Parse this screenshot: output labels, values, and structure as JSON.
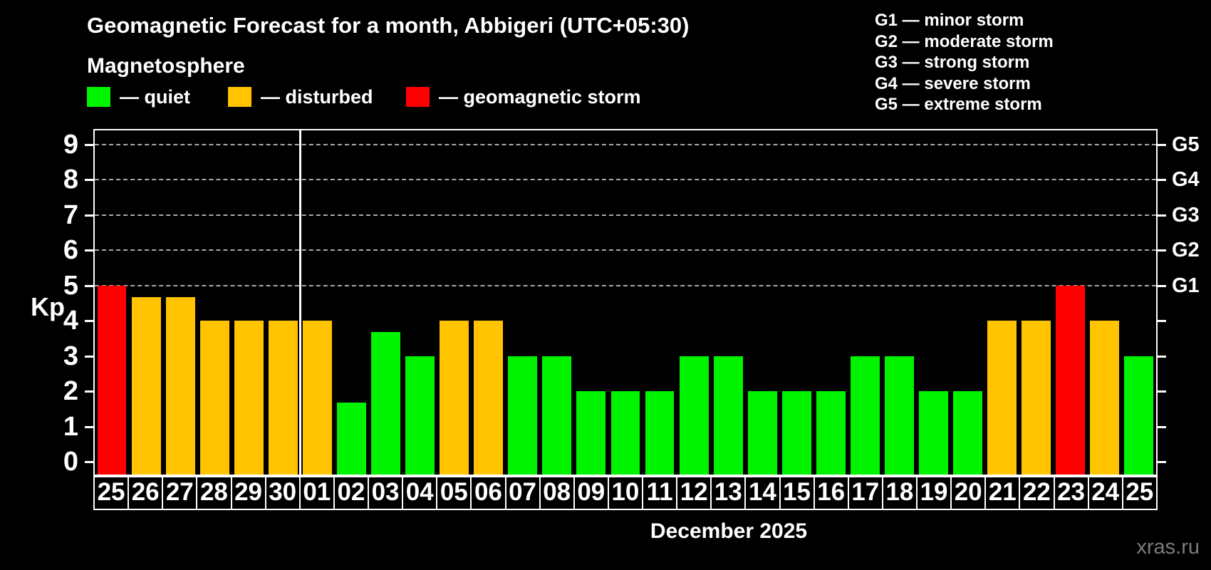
{
  "header": {
    "title": "Geomagnetic Forecast for a month, Abbigeri (UTC+05:30)",
    "subtitle": "Magnetosphere"
  },
  "legend": {
    "items": [
      {
        "key": "quiet",
        "label": "— quiet",
        "color": "#00f400"
      },
      {
        "key": "disturbed",
        "label": "— disturbed",
        "color": "#ffc300"
      },
      {
        "key": "storm",
        "label": "— geomagnetic storm",
        "color": "#ff0000"
      }
    ]
  },
  "g_scale_legend": [
    "G1 — minor storm",
    "G2 — moderate storm",
    "G3 — strong storm",
    "G4 — severe storm",
    "G5 — extreme storm"
  ],
  "chart_data": {
    "type": "bar",
    "title": "Geomagnetic Forecast for a month, Abbigeri (UTC+05:30)",
    "ylabel": "Kp",
    "xlabel": "December 2025",
    "ylim": [
      0,
      9
    ],
    "yticks": [
      0,
      1,
      2,
      3,
      4,
      5,
      6,
      7,
      8,
      9
    ],
    "grid": "dashed horizontal lines at Kp 5-9 only",
    "right_axis_labels": [
      {
        "label": "G1",
        "kp": 5
      },
      {
        "label": "G2",
        "kp": 6
      },
      {
        "label": "G3",
        "kp": 7
      },
      {
        "label": "G4",
        "kp": 8
      },
      {
        "label": "G5",
        "kp": 9
      }
    ],
    "month_separator_after_index": 5,
    "categories": [
      "25",
      "26",
      "27",
      "28",
      "29",
      "30",
      "01",
      "02",
      "03",
      "04",
      "05",
      "06",
      "07",
      "08",
      "09",
      "10",
      "11",
      "12",
      "13",
      "14",
      "15",
      "16",
      "17",
      "18",
      "19",
      "20",
      "21",
      "22",
      "23",
      "24",
      "25"
    ],
    "series": [
      {
        "name": "Kp forecast",
        "values": [
          5,
          4.67,
          4.67,
          4,
          4,
          4,
          4,
          1.67,
          3.67,
          3,
          4,
          4,
          3,
          3,
          2,
          2,
          2,
          3,
          3,
          2,
          2,
          2,
          3,
          3,
          2,
          2,
          4,
          4,
          5,
          4,
          3
        ]
      }
    ],
    "statuses": [
      "storm",
      "disturbed",
      "disturbed",
      "disturbed",
      "disturbed",
      "disturbed",
      "disturbed",
      "quiet",
      "quiet",
      "quiet",
      "disturbed",
      "disturbed",
      "quiet",
      "quiet",
      "quiet",
      "quiet",
      "quiet",
      "quiet",
      "quiet",
      "quiet",
      "quiet",
      "quiet",
      "quiet",
      "quiet",
      "quiet",
      "quiet",
      "disturbed",
      "disturbed",
      "storm",
      "disturbed",
      "quiet"
    ],
    "status_colors": {
      "quiet": "#00f400",
      "disturbed": "#ffc300",
      "storm": "#ff0000"
    }
  },
  "footer": {
    "month_label": "December 2025",
    "watermark": "xras.ru"
  }
}
